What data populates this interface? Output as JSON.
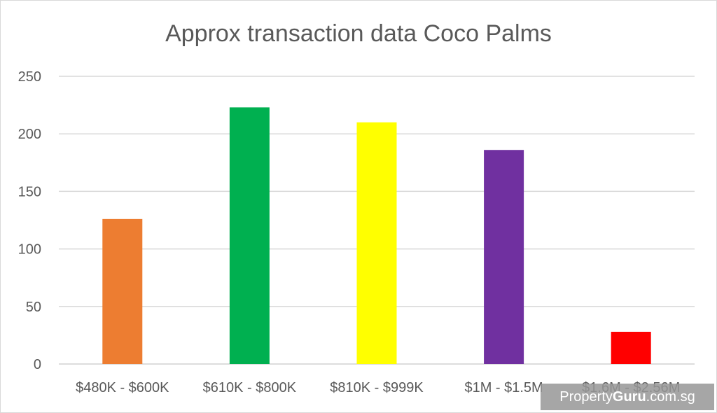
{
  "chart_data": {
    "type": "bar",
    "title": "Approx transaction data Coco Palms",
    "categories": [
      "$480K - $600K",
      "$610K - $800K",
      "$810K - $999K",
      "$1M - $1.5M",
      "$1.6M - $2.56M"
    ],
    "values": [
      126,
      223,
      210,
      186,
      28
    ],
    "colors": [
      "#ED7D31",
      "#00B050",
      "#FFFF00",
      "#7030A0",
      "#FF0000"
    ],
    "yticks": [
      0,
      50,
      100,
      150,
      200,
      250
    ],
    "ylim": [
      0,
      250
    ],
    "grid": true,
    "legend": "none"
  },
  "watermark": {
    "prefix": "Property",
    "brand": "Guru",
    "suffix": ".com.sg",
    "colors": {
      "background": "#969696",
      "text": "#ffffff"
    }
  }
}
